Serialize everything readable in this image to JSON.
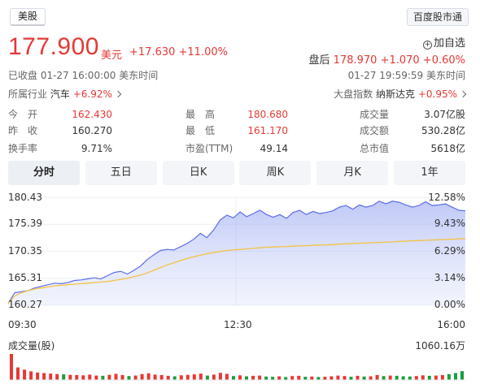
{
  "header": {
    "market_tab": "美股",
    "right_tab": "百度股市通"
  },
  "quote": {
    "price": "177.900",
    "currency": "美元",
    "change": "+17.630 +11.00%",
    "watch_label": "加自选",
    "after_hours_label": "盘后",
    "after_hours_value": "178.970 +1.070 +0.60%",
    "close_status": "已收盘 01-27 16:00:00 美东时间",
    "after_status": "01-27 19:59:59 美东时间"
  },
  "industry": {
    "label": "所属行业",
    "name": "汽车",
    "change": "+6.92%"
  },
  "index": {
    "label": "大盘指数",
    "name": "纳斯达克",
    "change": "+0.95%"
  },
  "stats": [
    {
      "label": "今　开",
      "value": "162.430",
      "tone": "red"
    },
    {
      "label": "最　高",
      "value": "180.680",
      "tone": "red"
    },
    {
      "label": "成交量",
      "value": "3.07亿股",
      "tone": "dark"
    },
    {
      "label": "昨　收",
      "value": "160.270",
      "tone": "dark"
    },
    {
      "label": "最　低",
      "value": "161.170",
      "tone": "red"
    },
    {
      "label": "成交额",
      "value": "530.28亿",
      "tone": "dark"
    },
    {
      "label": "换手率",
      "value": "9.71%",
      "tone": "dark"
    },
    {
      "label": "市盈(TTM)",
      "value": "49.14",
      "tone": "dark"
    },
    {
      "label": "总市值",
      "value": "5618亿",
      "tone": "dark"
    }
  ],
  "periods": [
    "分时",
    "五日",
    "日K",
    "周K",
    "月K",
    "1年"
  ],
  "active_period": 0,
  "colors": {
    "up": "#e53935",
    "down": "#1a9e3f",
    "price_line": "#5b6ee8",
    "avg_line": "#f4c242"
  },
  "chart_data": {
    "type": "line",
    "ylim": [
      160.27,
      180.43
    ],
    "y_ticks": [
      "180.43",
      "175.39",
      "170.35",
      "165.31",
      "160.27"
    ],
    "pct_ticks": [
      "12.58%",
      "9.43%",
      "6.29%",
      "3.14%",
      "0.00%"
    ],
    "x_ticks": [
      "09:30",
      "12:30",
      "16:00"
    ],
    "volume_title": "成交量(股)",
    "volume_max": "1060.16万",
    "series": [
      {
        "values": [
          160.6,
          162.6,
          162.8,
          163.0,
          163.5,
          163.8,
          164.1,
          164.4,
          164.3,
          164.5,
          164.9,
          165.0,
          165.2,
          165.4,
          165.2,
          165.8,
          166.4,
          166.6,
          166.1,
          166.8,
          167.6,
          168.8,
          169.7,
          170.5,
          170.7,
          170.6,
          171.2,
          171.8,
          172.6,
          173.7,
          172.9,
          174.3,
          176.2,
          177.1,
          176.6,
          177.7,
          176.8,
          177.4,
          178.0,
          177.2,
          176.7,
          177.2,
          176.5,
          177.6,
          178.0,
          177.2,
          177.8,
          177.4,
          177.6,
          177.9,
          178.6,
          178.9,
          178.2,
          179.0,
          178.6,
          178.9,
          179.7,
          179.2,
          179.7,
          179.5,
          179.0,
          178.6,
          178.9,
          179.6,
          178.9,
          179.0,
          179.2,
          178.6,
          178.0,
          177.9
        ]
      },
      {
        "values": [
          160.6,
          162.0,
          162.6,
          163.0,
          163.3,
          163.5,
          163.7,
          163.9,
          164.0,
          164.1,
          164.2,
          164.3,
          164.4,
          164.5,
          164.6,
          164.7,
          164.9,
          165.1,
          165.3,
          165.6,
          165.9,
          166.3,
          166.8,
          167.3,
          167.8,
          168.2,
          168.6,
          169.0,
          169.3,
          169.6,
          169.9,
          170.1,
          170.3,
          170.5,
          170.6,
          170.7,
          170.8,
          170.9,
          171.0,
          171.1,
          171.15,
          171.2,
          171.25,
          171.3,
          171.35,
          171.4,
          171.45,
          171.5,
          171.55,
          171.6,
          171.7,
          171.75,
          171.8,
          171.85,
          171.9,
          171.95,
          172.0,
          172.05,
          172.1,
          172.2,
          172.25,
          172.3,
          172.35,
          172.4,
          172.45,
          172.5,
          172.55,
          172.6,
          172.65,
          172.7
        ]
      }
    ],
    "volume": [
      10.6,
      5.1,
      4.2,
      3.5,
      3.0,
      2.8,
      2.6,
      2.4,
      2.3,
      2.1,
      2.0,
      1.9,
      2.2,
      1.8,
      1.7,
      2.1,
      2.5,
      2.0,
      1.6,
      1.8,
      2.4,
      2.7,
      2.2,
      2.0,
      1.7,
      1.5,
      1.9,
      2.1,
      2.3,
      2.6,
      1.8,
      2.2,
      2.9,
      2.5,
      1.6,
      1.9,
      1.5,
      1.7,
      1.8,
      1.4,
      1.3,
      1.5,
      1.2,
      1.6,
      1.7,
      1.3,
      1.4,
      1.2,
      1.3,
      1.5,
      1.8,
      1.6,
      1.3,
      1.7,
      1.4,
      1.5,
      2.0,
      1.6,
      1.8,
      1.7,
      1.5,
      1.4,
      1.6,
      1.9,
      1.7,
      1.8,
      2.0,
      2.4,
      2.8,
      3.6
    ]
  }
}
